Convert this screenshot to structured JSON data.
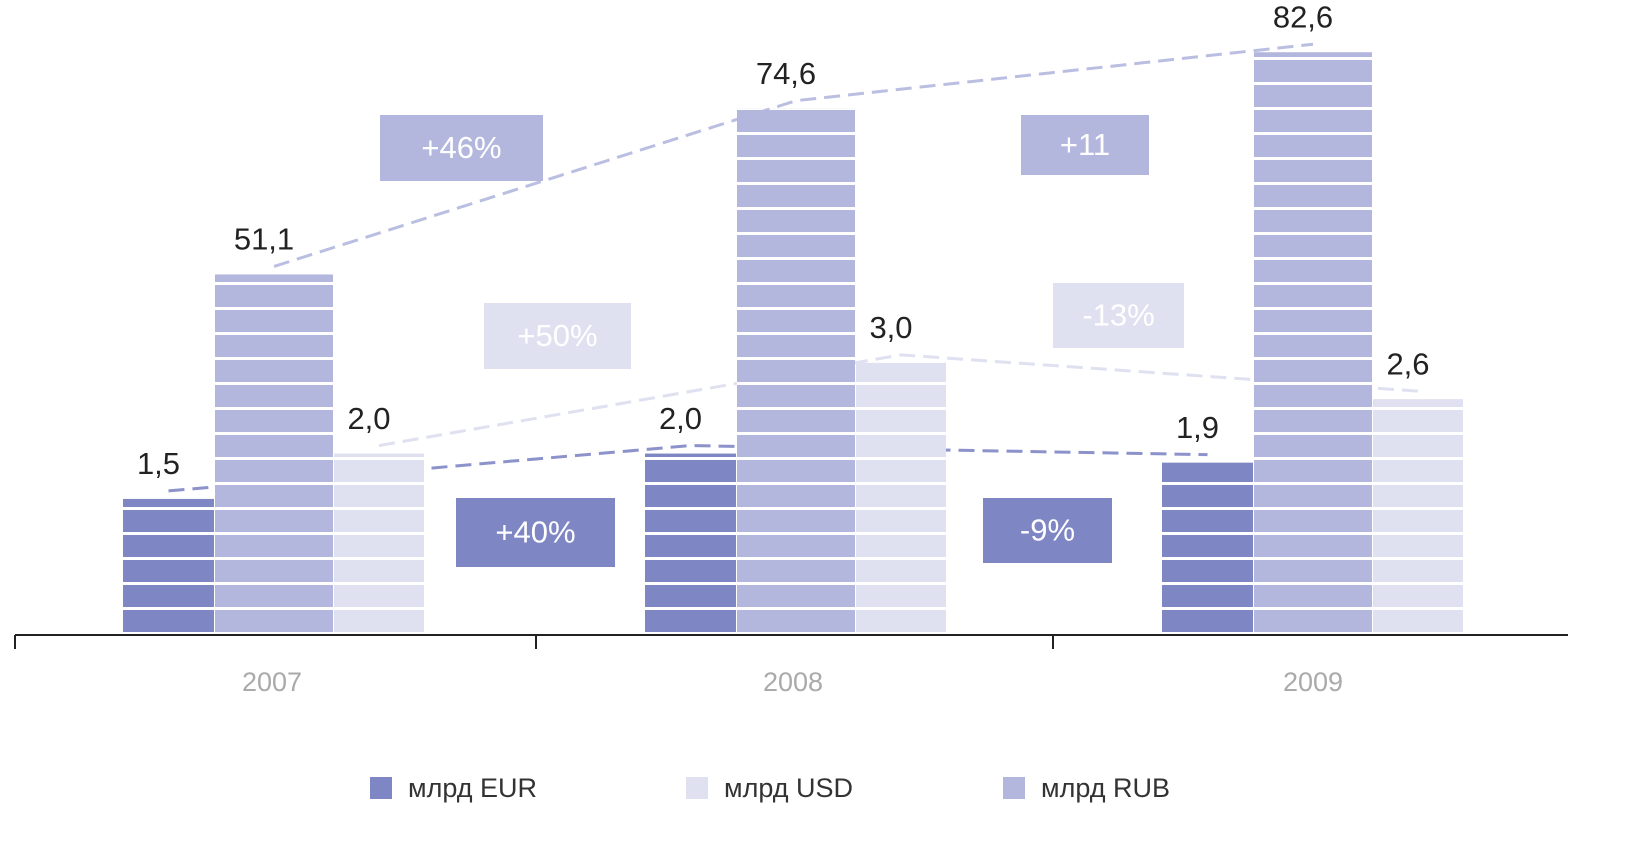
{
  "chart_data": {
    "type": "bar",
    "categories": [
      "2007",
      "2008",
      "2009"
    ],
    "ylim": [
      0,
      7
    ],
    "y2lim": [
      0,
      90
    ],
    "series": [
      {
        "name": "млрд EUR",
        "color": "#7f86c4",
        "values": [
          1.5,
          2.0,
          1.9
        ],
        "value_labels": [
          "1,5",
          "2,0",
          "1,9"
        ]
      },
      {
        "name": "млрд USD",
        "color": "#dfe1f0",
        "values": [
          2.0,
          3.0,
          2.6
        ],
        "value_labels": [
          "2,0",
          "3,0",
          "2,6"
        ]
      },
      {
        "name": "млрд RUB",
        "color": "#b3b7de",
        "axis": "y2",
        "values": [
          51.1,
          74.6,
          82.6
        ],
        "value_labels": [
          "51,1",
          "74,6",
          "82,6"
        ]
      }
    ],
    "annotations": [
      "+46%",
      "+11",
      "+50%",
      "-13%",
      "+40%",
      "-9%"
    ]
  }
}
